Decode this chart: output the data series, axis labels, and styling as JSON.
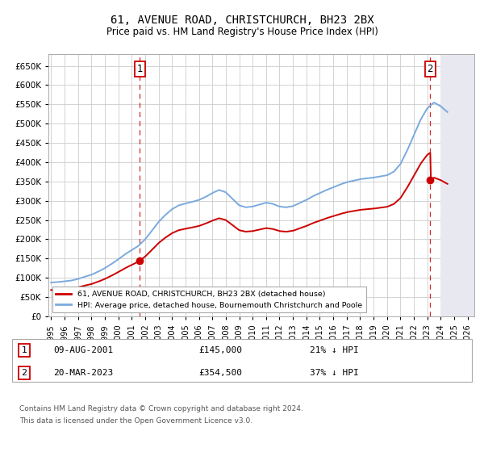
{
  "title": "61, AVENUE ROAD, CHRISTCHURCH, BH23 2BX",
  "subtitle": "Price paid vs. HM Land Registry's House Price Index (HPI)",
  "ylim": [
    0,
    680000
  ],
  "yticks": [
    0,
    50000,
    100000,
    150000,
    200000,
    250000,
    300000,
    350000,
    400000,
    450000,
    500000,
    550000,
    600000,
    650000
  ],
  "xlim_start": 1994.8,
  "xlim_end": 2026.5,
  "xticks": [
    1995,
    1996,
    1997,
    1998,
    1999,
    2000,
    2001,
    2002,
    2003,
    2004,
    2005,
    2006,
    2007,
    2008,
    2009,
    2010,
    2011,
    2012,
    2013,
    2014,
    2015,
    2016,
    2017,
    2018,
    2019,
    2020,
    2021,
    2022,
    2023,
    2024,
    2025,
    2026
  ],
  "sale1_date": 2001.61,
  "sale1_price": 145000,
  "sale1_label": "1",
  "sale1_date_str": "09-AUG-2001",
  "sale1_price_str": "£145,000",
  "sale1_pct": "21% ↓ HPI",
  "sale2_date": 2023.22,
  "sale2_price": 354500,
  "sale2_label": "2",
  "sale2_date_str": "20-MAR-2023",
  "sale2_price_str": "£354,500",
  "sale2_pct": "37% ↓ HPI",
  "hpi_color": "#7aaadd",
  "sale_color": "#cc0000",
  "dashed_color": "#cc0000",
  "grid_color": "#cccccc",
  "bg_color": "#ffffff",
  "hatch_color": "#bbbbdd",
  "legend_label_red": "61, AVENUE ROAD, CHRISTCHURCH, BH23 2BX (detached house)",
  "legend_label_blue": "HPI: Average price, detached house, Bournemouth Christchurch and Poole",
  "footer1": "Contains HM Land Registry data © Crown copyright and database right 2024.",
  "footer2": "This data is licensed under the Open Government Licence v3.0.",
  "hpi_years": [
    1995.0,
    1995.5,
    1996.0,
    1996.5,
    1997.0,
    1997.5,
    1998.0,
    1998.5,
    1999.0,
    1999.5,
    2000.0,
    2000.5,
    2001.0,
    2001.5,
    2002.0,
    2002.5,
    2003.0,
    2003.5,
    2004.0,
    2004.5,
    2005.0,
    2005.5,
    2006.0,
    2006.5,
    2007.0,
    2007.5,
    2008.0,
    2008.5,
    2009.0,
    2009.5,
    2010.0,
    2010.5,
    2011.0,
    2011.5,
    2012.0,
    2012.5,
    2013.0,
    2013.5,
    2014.0,
    2014.5,
    2015.0,
    2015.5,
    2016.0,
    2016.5,
    2017.0,
    2017.5,
    2018.0,
    2018.5,
    2019.0,
    2019.5,
    2020.0,
    2020.5,
    2021.0,
    2021.5,
    2022.0,
    2022.5,
    2023.0,
    2023.5,
    2024.0,
    2024.5
  ],
  "hpi_values": [
    88000,
    89000,
    91000,
    93000,
    97000,
    103000,
    108000,
    116000,
    125000,
    136000,
    148000,
    161000,
    172000,
    183000,
    200000,
    222000,
    245000,
    263000,
    278000,
    288000,
    293000,
    297000,
    302000,
    310000,
    320000,
    328000,
    322000,
    305000,
    288000,
    283000,
    285000,
    290000,
    295000,
    292000,
    285000,
    283000,
    286000,
    294000,
    302000,
    312000,
    320000,
    328000,
    335000,
    342000,
    348000,
    352000,
    356000,
    358000,
    360000,
    363000,
    366000,
    375000,
    395000,
    430000,
    470000,
    510000,
    540000,
    555000,
    545000,
    530000
  ]
}
